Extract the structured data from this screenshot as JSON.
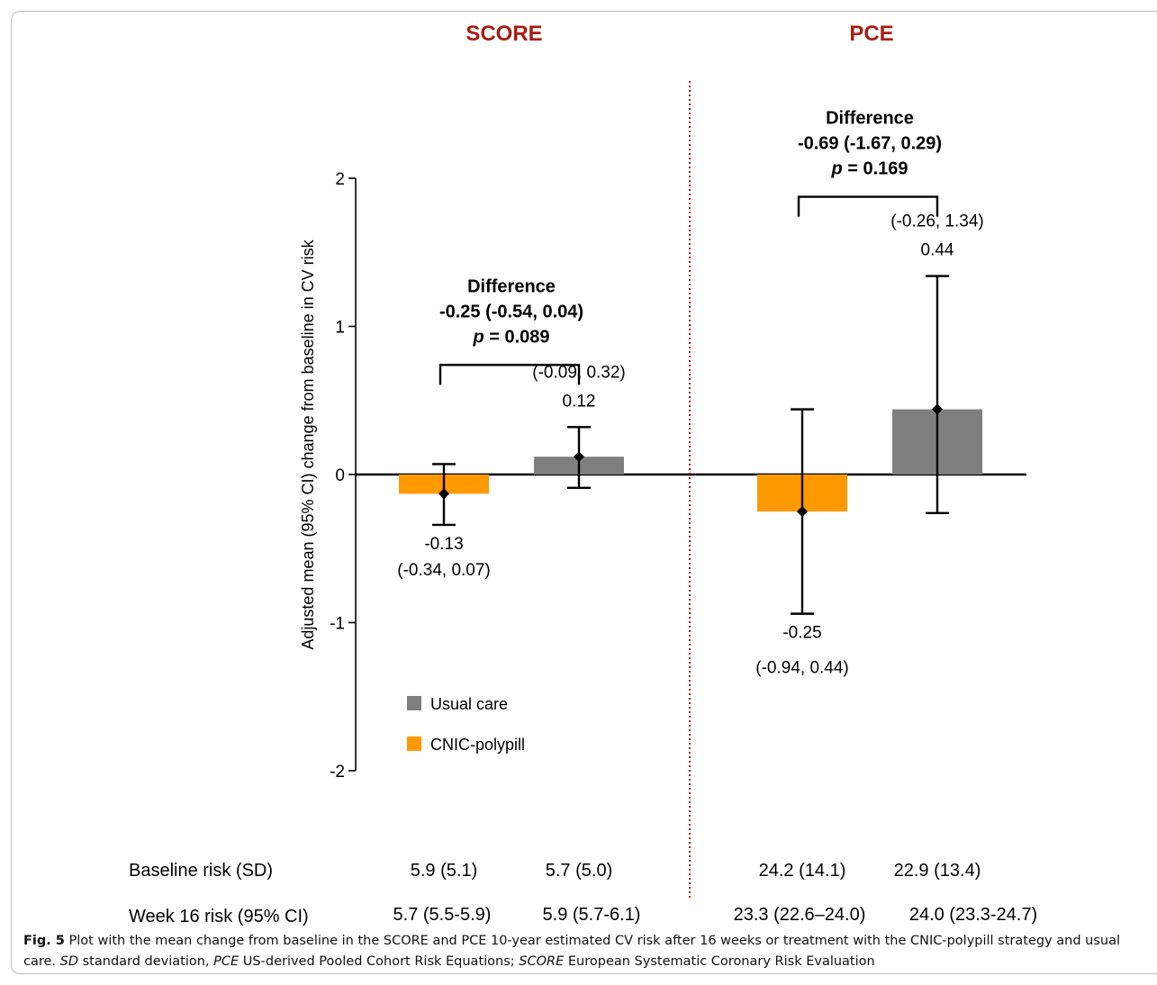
{
  "chart_data": {
    "type": "bar",
    "ylabel": "Adjusted mean (95% CI) change from baseline in CV risk",
    "ylim": [
      -2,
      2
    ],
    "yticks": [
      "2",
      "1",
      "0",
      "-1",
      "-2"
    ],
    "colors": {
      "usual_care": "#7f7f7f",
      "cnic_polypill": "#ff9900",
      "heading": "#a41e15",
      "divider": "#a41e15"
    },
    "legend": {
      "placement": "lower-left",
      "items": [
        "Usual care",
        "CNIC-polypill"
      ]
    },
    "panels": [
      {
        "title": "SCORE",
        "bars": [
          {
            "group": "CNIC-polypill",
            "value": -0.13,
            "ci_low": -0.34,
            "ci_high": 0.07,
            "value_label": "-0.13",
            "ci_label": "(-0.34, 0.07)"
          },
          {
            "group": "Usual care",
            "value": 0.12,
            "ci_low": -0.09,
            "ci_high": 0.32,
            "value_label": "0.12",
            "ci_label": "(-0.09, 0.32)"
          }
        ],
        "difference": {
          "title": "Difference",
          "value": "-0.25 (-0.54, 0.04)",
          "p_label": "p",
          "p_value": " = 0.089"
        },
        "baseline": [
          "5.9 (5.1)",
          "5.7 (5.0)"
        ],
        "week16": [
          "5.7 (5.5-5.9)",
          "5.9 (5.7-6.1)"
        ]
      },
      {
        "title": "PCE",
        "bars": [
          {
            "group": "CNIC-polypill",
            "value": -0.25,
            "ci_low": -0.94,
            "ci_high": 0.44,
            "value_label": "-0.25",
            "ci_label": "(-0.94, 0.44)"
          },
          {
            "group": "Usual care",
            "value": 0.44,
            "ci_low": -0.26,
            "ci_high": 1.34,
            "value_label": "0.44",
            "ci_label": "(-0.26, 1.34)"
          }
        ],
        "difference": {
          "title": "Difference",
          "value": "-0.69 (-1.67, 0.29)",
          "p_label": "p",
          "p_value": " = 0.169"
        },
        "baseline": [
          "24.2 (14.1)",
          "22.9 (13.4)"
        ],
        "week16": [
          "23.3 (22.6–24.0)",
          "24.0 (23.3-24.7)"
        ]
      }
    ],
    "row_labels": {
      "baseline": "Baseline risk (SD)",
      "week16": "Week 16 risk (95% CI)"
    }
  },
  "caption": {
    "fig_label": "Fig. 5",
    "text_1": " Plot with the mean change from baseline in the SCORE and PCE 10-year estimated CV risk after 16 weeks or treatment with the CNIC-polypill strategy and usual care. ",
    "abbr_sd": "SD",
    "text_2": " standard deviation, ",
    "abbr_pce": "PCE",
    "text_3": " US-derived Pooled Cohort Risk Equations; ",
    "abbr_score": "SCORE",
    "text_4": " European Systematic Coronary Risk Evaluation"
  }
}
